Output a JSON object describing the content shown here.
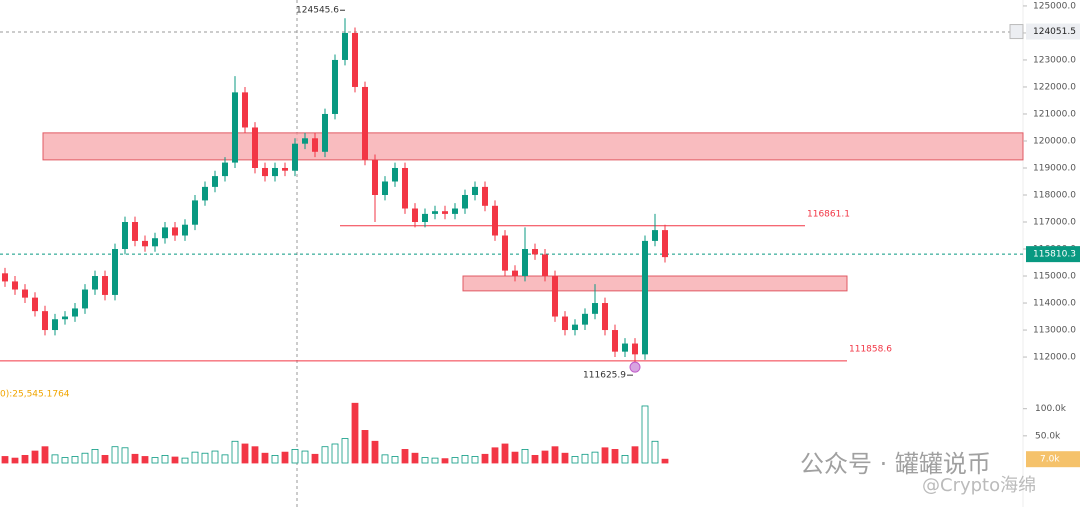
{
  "chart_data": {
    "type": "candlestick",
    "up_color": "#089981",
    "down_color": "#f23645",
    "open": [
      115100,
      114800,
      114500,
      114200,
      113700,
      113000,
      113400,
      113500,
      113800,
      114500,
      115000,
      114300,
      116000,
      117000,
      116300,
      116100,
      116400,
      116800,
      116500,
      116900,
      117800,
      118300,
      118700,
      119200,
      121800,
      120500,
      119000,
      118700,
      119000,
      118900,
      119900,
      120100,
      119600,
      121000,
      123000,
      124000,
      122000,
      119300,
      118000,
      118500,
      119000,
      117500,
      117000,
      117300,
      117400,
      117300,
      117500,
      118000,
      118300,
      117600,
      116500,
      115200,
      115000,
      116000,
      115800,
      115000,
      113500,
      113000,
      113200,
      113600,
      114000,
      113000,
      112200,
      112500,
      112100,
      116300,
      116700
    ],
    "high": [
      115300,
      115000,
      114700,
      114400,
      113900,
      113600,
      113700,
      114000,
      114700,
      115200,
      115200,
      116200,
      117200,
      117200,
      116500,
      116600,
      117000,
      117000,
      117100,
      118000,
      118500,
      118900,
      119400,
      122400,
      122000,
      120700,
      119200,
      119200,
      119200,
      120100,
      120300,
      120300,
      121200,
      123200,
      124545.6,
      124200,
      122200,
      119500,
      118700,
      119200,
      119200,
      117700,
      117500,
      117600,
      117600,
      117700,
      118200,
      118500,
      118500,
      117800,
      116700,
      115400,
      116800,
      116200,
      116000,
      115200,
      113700,
      113400,
      113800,
      114700,
      114200,
      113200,
      112700,
      112700,
      116500,
      117300,
      116900
    ],
    "low": [
      114600,
      114300,
      114000,
      113500,
      112800,
      112800,
      113200,
      113300,
      113600,
      114300,
      114100,
      114100,
      115800,
      116100,
      115900,
      115900,
      116200,
      116300,
      116300,
      116700,
      117600,
      118100,
      118500,
      119000,
      120300,
      118800,
      118500,
      118500,
      118700,
      118700,
      119700,
      119400,
      119400,
      120800,
      122800,
      121800,
      119100,
      117000,
      117800,
      118300,
      117300,
      116800,
      116800,
      117100,
      117100,
      117100,
      117300,
      117800,
      117400,
      116300,
      115000,
      114800,
      114800,
      115600,
      114800,
      113300,
      112800,
      112800,
      113000,
      113400,
      112800,
      112000,
      112000,
      111625.9,
      111900,
      116100,
      115500
    ],
    "close": [
      114800,
      114500,
      114200,
      113700,
      113000,
      113400,
      113500,
      113800,
      114500,
      115000,
      114300,
      116000,
      117000,
      116300,
      116100,
      116400,
      116800,
      116500,
      116900,
      117800,
      118300,
      118700,
      119200,
      121800,
      120500,
      119000,
      118700,
      119000,
      118900,
      119900,
      120100,
      119600,
      121000,
      123000,
      124000,
      122000,
      119300,
      118000,
      118500,
      119000,
      117500,
      117000,
      117300,
      117400,
      117300,
      117500,
      118000,
      118300,
      117600,
      116500,
      115200,
      115000,
      116000,
      115800,
      115000,
      113500,
      113000,
      113200,
      113600,
      114000,
      113000,
      112200,
      112500,
      112100,
      116300,
      116700,
      115700
    ],
    "volume": [
      12000,
      9000,
      14000,
      22000,
      30000,
      15000,
      10000,
      12000,
      18000,
      25000,
      14000,
      30000,
      28000,
      16000,
      12000,
      10000,
      14000,
      11000,
      9000,
      20000,
      18000,
      22000,
      15000,
      40000,
      35000,
      30000,
      18000,
      14000,
      20000,
      25000,
      22000,
      16000,
      30000,
      35000,
      45000,
      110000,
      60000,
      40000,
      15000,
      12000,
      25000,
      18000,
      10000,
      9000,
      8000,
      10000,
      14000,
      12000,
      16000,
      28000,
      35000,
      20000,
      25000,
      14000,
      22000,
      30000,
      18000,
      12000,
      16000,
      20000,
      28000,
      25000,
      14000,
      30000,
      105000,
      40000,
      7000
    ],
    "ylim": [
      111150,
      125220
    ],
    "yticks": [
      {
        "value": 112000,
        "label": "112000.0"
      },
      {
        "value": 113000,
        "label": "113000.0"
      },
      {
        "value": 114000,
        "label": "114000.0"
      },
      {
        "value": 115000,
        "label": "115000.0"
      },
      {
        "value": 116000,
        "label": "116000.0"
      },
      {
        "value": 117000,
        "label": "117000.0"
      },
      {
        "value": 118000,
        "label": "118000.0"
      },
      {
        "value": 119000,
        "label": "119000.0"
      },
      {
        "value": 120000,
        "label": "120000.0"
      },
      {
        "value": 121000,
        "label": "121000.0"
      },
      {
        "value": 122000,
        "label": "122000.0"
      },
      {
        "value": 123000,
        "label": "123000.0"
      },
      {
        "value": 124000,
        "label": "124000.0"
      },
      {
        "value": 125000,
        "label": "125000.0"
      }
    ],
    "volume_ylim": [
      0,
      116000
    ],
    "volume_yticks": [
      {
        "value": 50000,
        "label": "50.0k"
      },
      {
        "value": 100000,
        "label": "100.0k"
      }
    ],
    "zones": [
      {
        "low": 119300,
        "high": 120300,
        "color": "#f7a6aa"
      },
      {
        "low": 114450,
        "high": 115000,
        "color": "#f7a6aa"
      }
    ],
    "levels": [
      116861.1,
      111858.6
    ],
    "crosshair_price": 124051.5,
    "last_price": 115810.3,
    "volume_legend": "0):25,545.1764",
    "volume_tag": "7.0k",
    "watermark": "公众号 · 罐罐说币",
    "watermark2": "@Crypto海绵"
  }
}
